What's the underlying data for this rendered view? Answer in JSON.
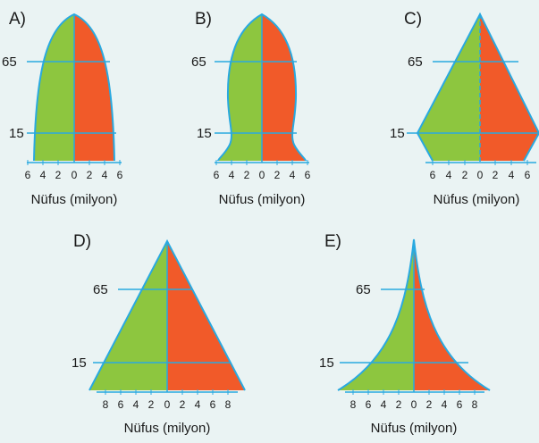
{
  "colors": {
    "background": "#eaf3f3",
    "male_fill": "#8dc63f",
    "female_fill": "#f15a29",
    "outline": "#29a9e0"
  },
  "panels": [
    {
      "id": "A",
      "label": "A)",
      "age_labels": [
        "65",
        "15"
      ],
      "axis_ticks": [
        "6",
        "4",
        "2",
        "0",
        "2",
        "4",
        "6"
      ],
      "axis_title": "Nüfus (milyon)"
    },
    {
      "id": "B",
      "label": "B)",
      "age_labels": [
        "65",
        "15"
      ],
      "axis_ticks": [
        "6",
        "4",
        "2",
        "0",
        "2",
        "4",
        "6"
      ],
      "axis_title": "Nüfus (milyon)"
    },
    {
      "id": "C",
      "label": "C)",
      "age_labels": [
        "65",
        "15"
      ],
      "axis_ticks": [
        "6",
        "4",
        "2",
        "0",
        "2",
        "4",
        "6"
      ],
      "axis_title": "Nüfus (milyon)"
    },
    {
      "id": "D",
      "label": "D)",
      "age_labels": [
        "65",
        "15"
      ],
      "axis_ticks": [
        "8",
        "6",
        "4",
        "2",
        "0",
        "2",
        "4",
        "6",
        "8"
      ],
      "axis_title": "Nüfus (milyon)"
    },
    {
      "id": "E",
      "label": "E)",
      "age_labels": [
        "65",
        "15"
      ],
      "axis_ticks": [
        "8",
        "6",
        "4",
        "2",
        "0",
        "2",
        "4",
        "6",
        "8"
      ],
      "axis_title": "Nüfus (milyon)"
    }
  ]
}
